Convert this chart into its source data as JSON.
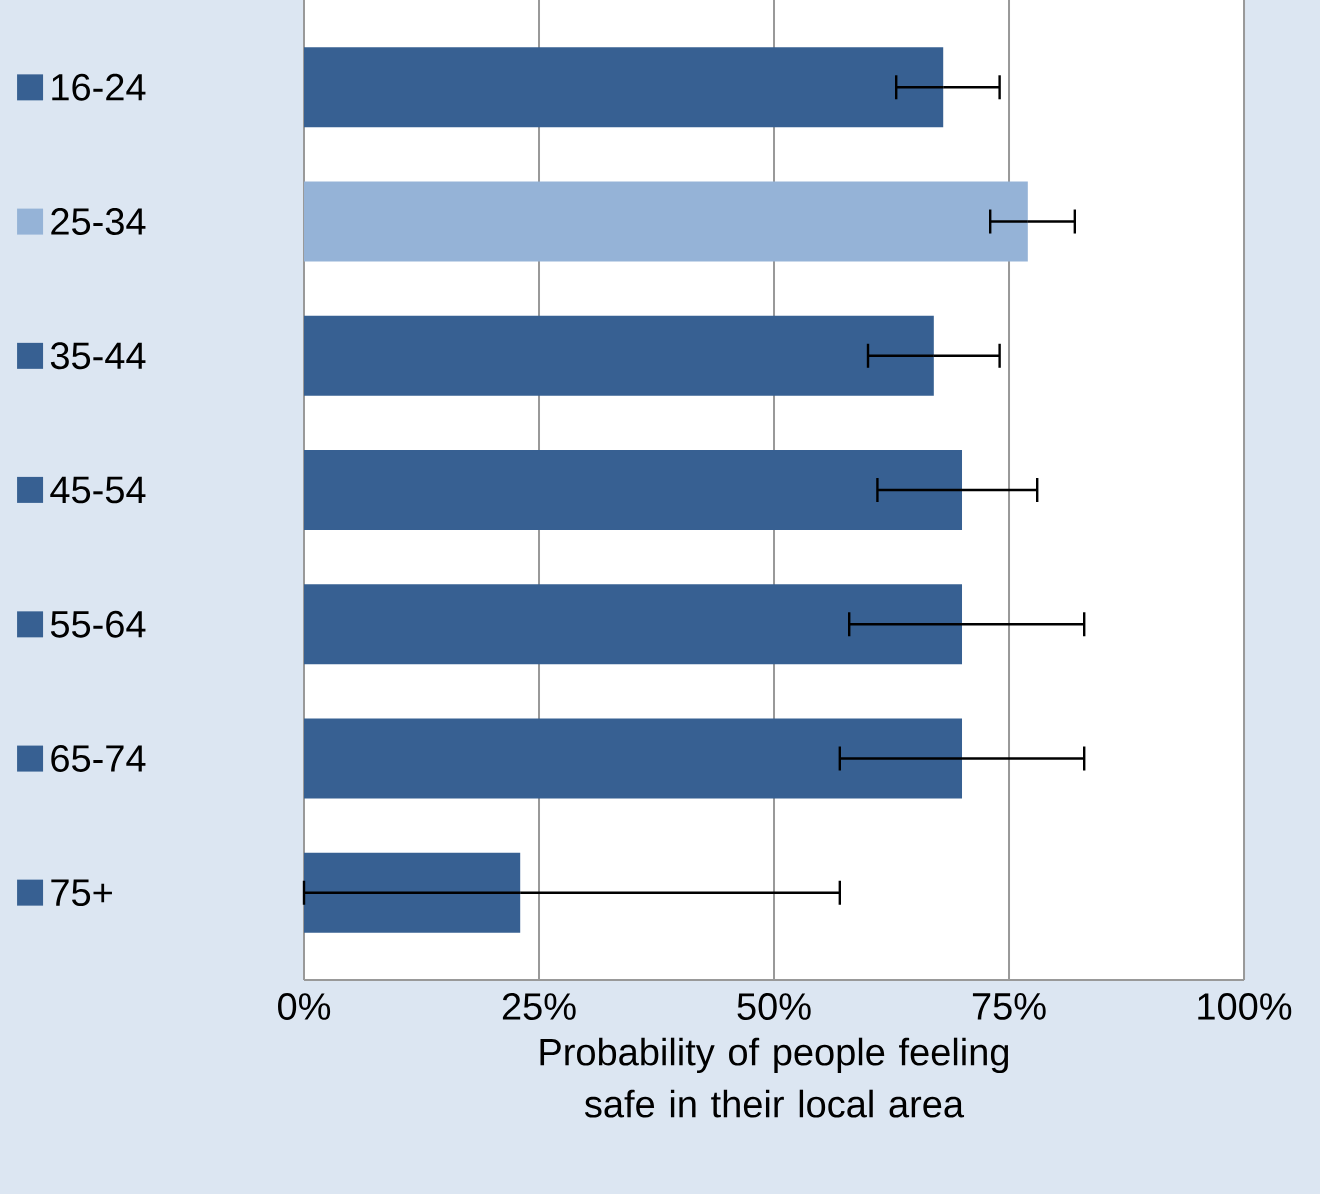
{
  "chart_data": {
    "type": "bar",
    "orientation": "horizontal",
    "xlabel": "Probability of people feeling safe in their local area",
    "categories": [
      "16-24",
      "25-34",
      "35-44",
      "45-54",
      "55-64",
      "65-74",
      "75+"
    ],
    "values": [
      68,
      77,
      67,
      70,
      70,
      70,
      23
    ],
    "colors": [
      "#376092",
      "#95b3d7",
      "#376092",
      "#376092",
      "#376092",
      "#376092",
      "#376092"
    ],
    "errors": [
      [
        63,
        74
      ],
      [
        73,
        82
      ],
      [
        60,
        74
      ],
      [
        61,
        78
      ],
      [
        58,
        83
      ],
      [
        57,
        83
      ],
      [
        0,
        57
      ]
    ],
    "xlim": [
      0,
      100
    ],
    "xticks": [
      {
        "value": 0,
        "label": "0%"
      },
      {
        "value": 25,
        "label": "25%"
      },
      {
        "value": 50,
        "label": "50%"
      },
      {
        "value": 75,
        "label": "75%"
      },
      {
        "value": 100,
        "label": "100%"
      }
    ],
    "grid": "x"
  }
}
